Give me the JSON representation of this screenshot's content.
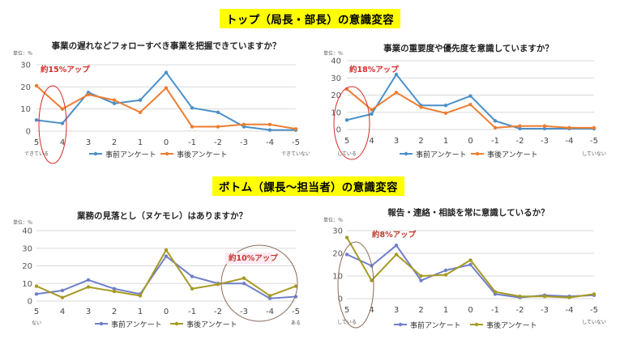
{
  "sections": {
    "top": "トップ（局長・部長）の意識変容",
    "bottom": "ボトム（課長～担当者）の意識変容"
  },
  "chart_data": [
    {
      "type": "line",
      "title": "事業の遅れなどフォローすべき事業を把握できていますか？",
      "unit_label": "単位：％",
      "categories": [
        "5",
        "4",
        "3",
        "2",
        "1",
        "0",
        "-1",
        "-2",
        "-3",
        "-4",
        "-5"
      ],
      "ylim": [
        0,
        30
      ],
      "yticks": [
        0,
        10,
        20,
        30
      ],
      "series": [
        {
          "name": "事前アンケート",
          "color": "#4a90c8",
          "values": [
            5,
            3.5,
            17.5,
            12.5,
            14,
            26.5,
            10.5,
            8.5,
            2,
            0.5,
            0.5
          ]
        },
        {
          "name": "事後アンケート",
          "color": "#ed7d31",
          "values": [
            20.5,
            10,
            16.5,
            14,
            8.5,
            19.5,
            2,
            2,
            3,
            3,
            1
          ]
        }
      ],
      "left_caption": "できている",
      "right_caption": "できていない",
      "annotation": "約15%アップ",
      "highlight_index": 0,
      "annotation_color": "#d52b2b"
    },
    {
      "type": "line",
      "title": "事業の重要度や優先度を意識していますか？",
      "unit_label": "単位：％",
      "categories": [
        "5",
        "4",
        "3",
        "2",
        "1",
        "0",
        "-1",
        "-2",
        "-3",
        "-4",
        "-5"
      ],
      "ylim": [
        0,
        40
      ],
      "yticks": [
        0,
        10,
        20,
        30,
        40
      ],
      "series": [
        {
          "name": "事前アンケート",
          "color": "#4a90c8",
          "values": [
            5.5,
            9,
            32,
            14,
            14,
            19.5,
            5,
            0.5,
            0.5,
            0.5,
            0.5
          ]
        },
        {
          "name": "事後アンケート",
          "color": "#ed7d31",
          "values": [
            23.5,
            11.5,
            21.5,
            13,
            9.5,
            14.5,
            1,
            2,
            2,
            1,
            1
          ]
        }
      ],
      "left_caption": "している",
      "right_caption": "していない",
      "annotation": "約18%アップ",
      "highlight_index": 0,
      "annotation_color": "#d52b2b"
    },
    {
      "type": "line",
      "title": "業務の見落とし（ヌケモレ）はありますか？",
      "unit_label": "単位：％",
      "categories": [
        "5",
        "4",
        "3",
        "2",
        "1",
        "0",
        "-1",
        "-2",
        "-3",
        "-4",
        "-5"
      ],
      "ylim": [
        0,
        40
      ],
      "yticks": [
        0,
        10,
        20,
        30,
        40
      ],
      "series": [
        {
          "name": "事前アンケート",
          "color": "#6f7fc9",
          "values": [
            4,
            6,
            12,
            7,
            4,
            25.5,
            14,
            10,
            10,
            1.5,
            2.5
          ]
        },
        {
          "name": "事後アンケート",
          "color": "#a69a23",
          "values": [
            8.5,
            2,
            8,
            5.5,
            3,
            29,
            7,
            9.5,
            13,
            3,
            8.5
          ]
        }
      ],
      "left_caption": "ない",
      "right_caption": "ある",
      "annotation": "約10%アップ",
      "highlight_range": [
        8,
        10
      ],
      "annotation_color": "#c0392b"
    },
    {
      "type": "line",
      "title": "報告・連絡・相談を常に意識しているか？",
      "unit_label": "単位：％",
      "categories": [
        "5",
        "4",
        "3",
        "2",
        "1",
        "0",
        "-1",
        "-2",
        "-3",
        "-4",
        "-5"
      ],
      "ylim": [
        0,
        30
      ],
      "yticks": [
        0,
        10,
        20,
        30
      ],
      "series": [
        {
          "name": "事前アンケート",
          "color": "#6f7fc9",
          "values": [
            19.5,
            14.5,
            23.5,
            8,
            12.5,
            15,
            2,
            0.5,
            1.5,
            1,
            1.5
          ]
        },
        {
          "name": "事後アンケート",
          "color": "#a69a23",
          "values": [
            27,
            8,
            19.5,
            10,
            10.5,
            17,
            3,
            1,
            1,
            0.5,
            2
          ]
        }
      ],
      "left_caption": "している",
      "right_caption": "していない",
      "annotation": "約8%アップ",
      "highlight_index": 0,
      "annotation_color": "#c0392b"
    }
  ]
}
